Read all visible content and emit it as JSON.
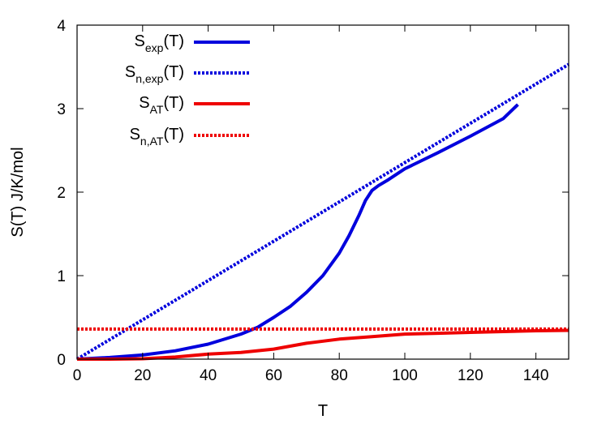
{
  "chart_data": {
    "type": "line",
    "title": "",
    "xlabel": "T",
    "ylabel": "S(T) J/K/mol",
    "xlim": [
      0,
      150
    ],
    "ylim": [
      0,
      4
    ],
    "xticks": [
      0,
      20,
      40,
      60,
      80,
      100,
      120,
      140
    ],
    "yticks": [
      0,
      1,
      2,
      3,
      4
    ],
    "grid": false,
    "legend_position": "top-left",
    "series": [
      {
        "name": "S_exp(T)",
        "name_main": "S",
        "name_sub": "exp",
        "name_suffix": "(T)",
        "color": "#0000dd",
        "style": "solid",
        "x": [
          0,
          10,
          20,
          30,
          40,
          50,
          55,
          60,
          65,
          70,
          75,
          80,
          83,
          86,
          88,
          90,
          92,
          95,
          100,
          110,
          120,
          130,
          134.5
        ],
        "y": [
          0.0,
          0.02,
          0.05,
          0.1,
          0.18,
          0.3,
          0.38,
          0.5,
          0.63,
          0.8,
          1.0,
          1.27,
          1.48,
          1.72,
          1.9,
          2.02,
          2.08,
          2.15,
          2.28,
          2.47,
          2.67,
          2.88,
          3.05
        ]
      },
      {
        "name": "S_n,exp(T)",
        "name_main": "S",
        "name_sub": "n,exp",
        "name_suffix": "(T)",
        "color": "#0000dd",
        "style": "dotted",
        "x": [
          0,
          150
        ],
        "y": [
          0.0,
          3.53
        ]
      },
      {
        "name": "S_AT(T)",
        "name_main": "S",
        "name_sub": "AT",
        "name_suffix": "(T)",
        "color": "#ee0000",
        "style": "solid",
        "x": [
          0,
          10,
          20,
          30,
          40,
          50,
          60,
          70,
          80,
          90,
          100,
          110,
          120,
          130,
          140,
          150
        ],
        "y": [
          0.0,
          0.0,
          0.005,
          0.025,
          0.06,
          0.08,
          0.12,
          0.19,
          0.24,
          0.27,
          0.3,
          0.31,
          0.32,
          0.33,
          0.34,
          0.345
        ]
      },
      {
        "name": "S_n,AT(T)",
        "name_main": "S",
        "name_sub": "n,AT",
        "name_suffix": "(T)",
        "color": "#ee0000",
        "style": "dotted",
        "x": [
          0,
          150
        ],
        "y": [
          0.36,
          0.36
        ]
      }
    ]
  }
}
